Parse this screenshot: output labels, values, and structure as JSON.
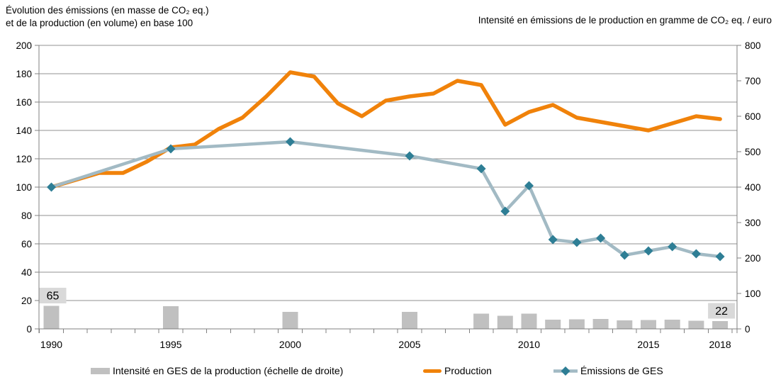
{
  "titles": {
    "left_line1": "Évolution des émissions (en masse de CO₂ eq.)",
    "left_line2": "et de la production (en volume) en base 100",
    "right": "Intensité en émissions de le production en gramme de CO₂ eq. / euro"
  },
  "chart_data": {
    "type": "combo (bar + line, dual axis)",
    "x_range": [
      1990,
      2018
    ],
    "x_tick_labels": [
      "1990",
      "1995",
      "2000",
      "2005",
      "2010",
      "2015",
      "2018"
    ],
    "left_axis": {
      "min": 0,
      "max": 200,
      "step": 20,
      "tick_labels": [
        "0",
        "20",
        "40",
        "60",
        "80",
        "100",
        "120",
        "140",
        "160",
        "180",
        "200"
      ]
    },
    "right_axis": {
      "min": 0,
      "max": 800,
      "step": 100,
      "tick_labels": [
        "0",
        "100",
        "200",
        "300",
        "400",
        "500",
        "600",
        "700",
        "800"
      ]
    },
    "grid": true,
    "legend_position": "bottom",
    "grid_color": "#909090",
    "axis_color": "#808080",
    "annotation_bg": "#D9D9D9",
    "series": [
      {
        "name": "Intensité en GES de la production (échelle de droite)",
        "type": "bar",
        "axis": "right",
        "color": "#C0C0C0",
        "points": [
          [
            1990,
            65
          ],
          [
            1995,
            64
          ],
          [
            2000,
            48
          ],
          [
            2005,
            48
          ],
          [
            2008,
            43
          ],
          [
            2009,
            37
          ],
          [
            2010,
            43
          ],
          [
            2011,
            26
          ],
          [
            2012,
            27
          ],
          [
            2013,
            28
          ],
          [
            2014,
            24
          ],
          [
            2015,
            25
          ],
          [
            2016,
            26
          ],
          [
            2017,
            23
          ],
          [
            2018,
            22
          ]
        ]
      },
      {
        "name": "Production",
        "type": "line",
        "axis": "left",
        "color": "#F0820A",
        "points": [
          [
            1990,
            100
          ],
          [
            1991,
            105
          ],
          [
            1992,
            110
          ],
          [
            1993,
            110
          ],
          [
            1994,
            118
          ],
          [
            1995,
            128
          ],
          [
            1996,
            130
          ],
          [
            1997,
            141
          ],
          [
            1998,
            149
          ],
          [
            1999,
            164
          ],
          [
            2000,
            181
          ],
          [
            2001,
            178
          ],
          [
            2002,
            159
          ],
          [
            2003,
            150
          ],
          [
            2004,
            161
          ],
          [
            2005,
            164
          ],
          [
            2006,
            166
          ],
          [
            2007,
            175
          ],
          [
            2008,
            172
          ],
          [
            2009,
            144
          ],
          [
            2010,
            153
          ],
          [
            2011,
            158
          ],
          [
            2012,
            149
          ],
          [
            2013,
            146
          ],
          [
            2014,
            143
          ],
          [
            2015,
            140
          ],
          [
            2016,
            145
          ],
          [
            2017,
            150
          ],
          [
            2018,
            148
          ]
        ]
      },
      {
        "name": "Émissions de GES",
        "type": "line-markers",
        "axis": "left",
        "color": "#A2BAC4",
        "marker_color": "#2E7E95",
        "points": [
          [
            1990,
            100
          ],
          [
            1995,
            127
          ],
          [
            2000,
            132
          ],
          [
            2005,
            122
          ],
          [
            2008,
            113
          ],
          [
            2009,
            83
          ],
          [
            2010,
            101
          ],
          [
            2011,
            63
          ],
          [
            2012,
            61
          ],
          [
            2013,
            64
          ],
          [
            2014,
            52
          ],
          [
            2015,
            55
          ],
          [
            2016,
            58
          ],
          [
            2017,
            53
          ],
          [
            2018,
            51
          ]
        ]
      }
    ],
    "annotations": [
      {
        "x": 1990,
        "text": "65"
      },
      {
        "x": 2018,
        "text": "22"
      }
    ]
  }
}
